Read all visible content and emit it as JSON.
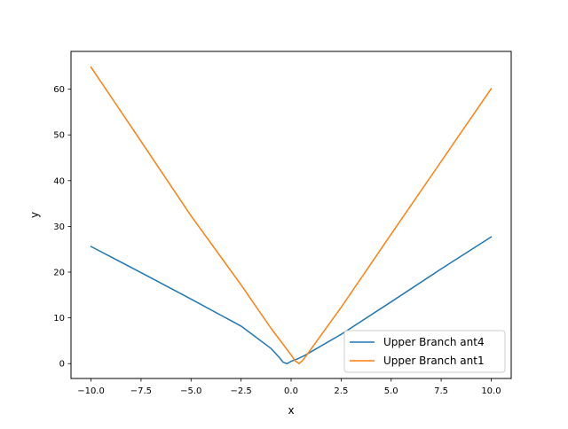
{
  "chart_data": {
    "type": "line",
    "title": "",
    "xlabel": "x",
    "ylabel": "y",
    "xlim": [
      -11.0,
      11.0
    ],
    "ylim": [
      -3.25,
      68.25
    ],
    "xticks": [
      -10.0,
      -7.5,
      -5.0,
      -2.5,
      0.0,
      2.5,
      5.0,
      7.5,
      10.0
    ],
    "xtick_labels": [
      "−10.0",
      "−7.5",
      "−5.0",
      "−2.5",
      "0.0",
      "2.5",
      "5.0",
      "7.5",
      "10.0"
    ],
    "yticks": [
      0,
      10,
      20,
      30,
      40,
      50,
      60
    ],
    "ytick_labels": [
      "0",
      "10",
      "20",
      "30",
      "40",
      "50",
      "60"
    ],
    "grid": false,
    "legend_position": "lower-right",
    "series": [
      {
        "name": "Upper Branch ant4",
        "color": "#1f77b4",
        "x": [
          -10.0,
          -7.5,
          -5.0,
          -2.5,
          -1.0,
          -0.6,
          -0.4,
          -0.2,
          0.0,
          0.3,
          0.6,
          1.0,
          2.5,
          5.0,
          7.5,
          10.0
        ],
        "y": [
          25.6,
          19.9,
          14.1,
          8.2,
          3.3,
          1.4,
          0.3,
          0.0,
          0.5,
          1.0,
          1.6,
          2.6,
          6.4,
          13.5,
          20.7,
          27.7
        ]
      },
      {
        "name": "Upper Branch ant1",
        "color": "#ff7f0e",
        "x": [
          -10.0,
          -7.5,
          -5.0,
          -2.5,
          -1.0,
          0.0,
          0.2,
          0.4,
          0.6,
          1.0,
          2.5,
          5.0,
          7.5,
          10.0
        ],
        "y": [
          64.8,
          48.6,
          32.3,
          17.2,
          7.7,
          1.9,
          0.6,
          0.0,
          0.8,
          3.2,
          12.3,
          28.3,
          44.2,
          60.1
        ]
      }
    ]
  }
}
